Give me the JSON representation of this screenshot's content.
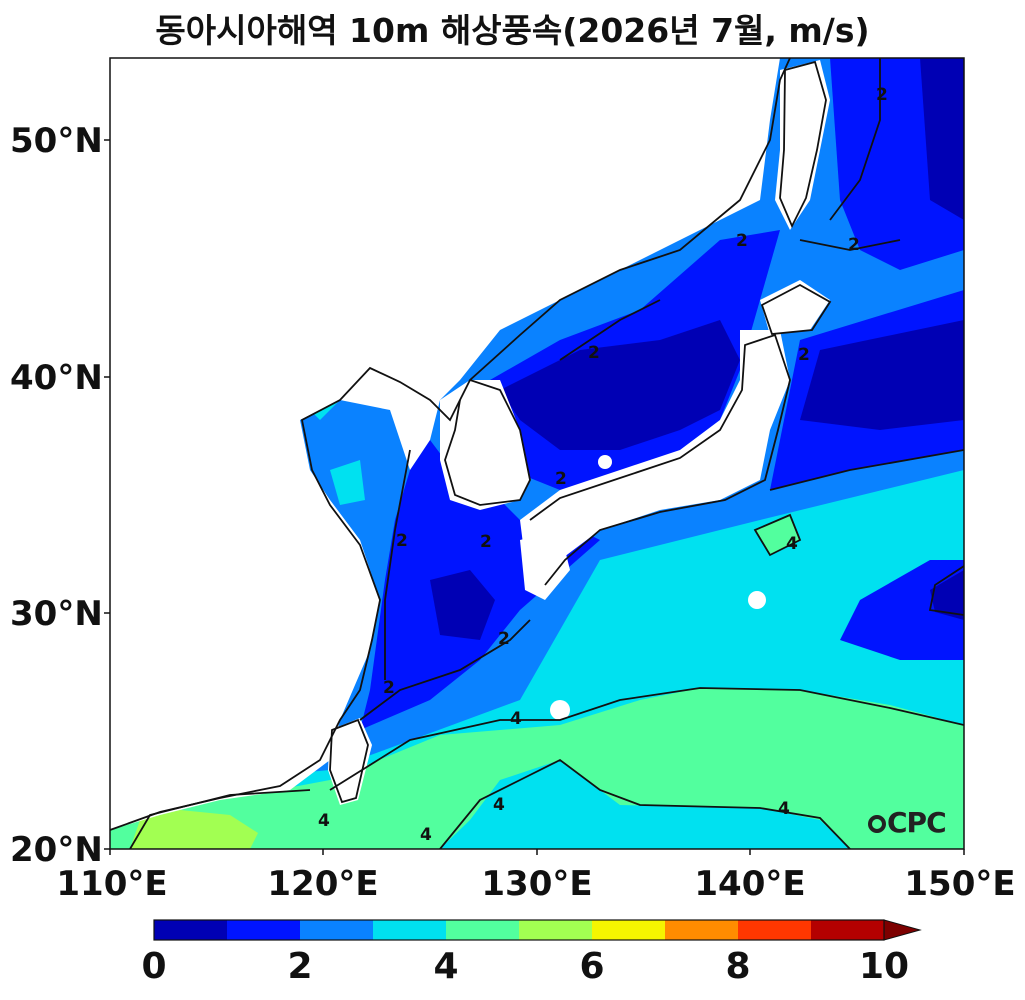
{
  "title": "동아시아해역 10m 해상풍속(2026년 7월, m/s)",
  "axes": {
    "lat_labels": [
      "50°N",
      "40°N",
      "30°N",
      "20°N"
    ],
    "lon_labels": [
      "110°E",
      "120°E",
      "130°E",
      "140°E",
      "150°E"
    ],
    "lat_range": [
      20,
      53.5
    ],
    "lon_range": [
      110,
      150
    ]
  },
  "colorbar": {
    "tick_labels": [
      "0",
      "2",
      "4",
      "6",
      "8",
      "10"
    ],
    "levels": [
      0,
      1,
      2,
      3,
      4,
      5,
      6,
      7,
      8,
      9,
      10
    ],
    "colors": [
      "#0000b4",
      "#0014ff",
      "#0a82ff",
      "#00e1f0",
      "#52ff9e",
      "#a2ff52",
      "#f5f500",
      "#ff8c00",
      "#ff3700",
      "#b40000"
    ],
    "extend_color": "#7d0000",
    "extend": "max"
  },
  "contour_labels": [
    "2",
    "2",
    "2",
    "2",
    "2",
    "2",
    "2",
    "2",
    "2",
    "2",
    "4",
    "4",
    "4",
    "4",
    "4",
    "4"
  ],
  "logo": {
    "text": "CPC"
  }
}
